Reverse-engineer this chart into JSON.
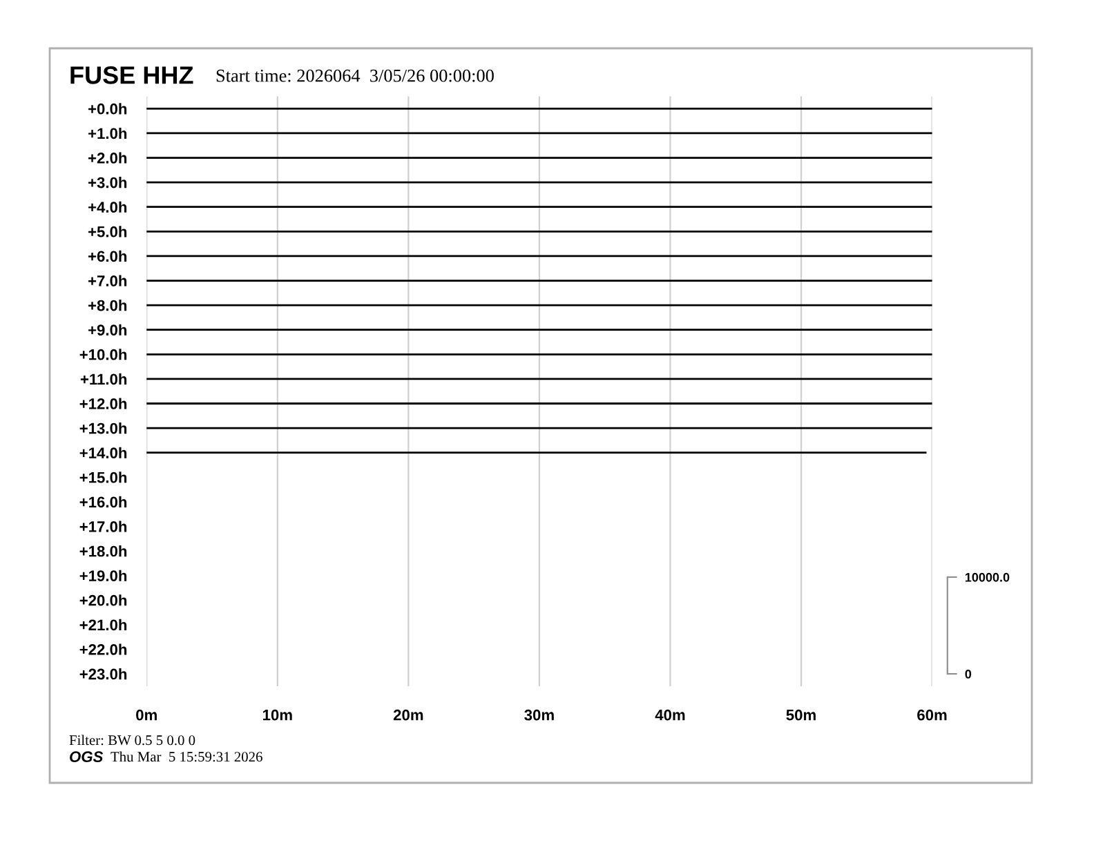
{
  "chart_data": {
    "type": "line",
    "title": "FUSE HHZ",
    "subtitle": "Start time: 2026064  3/05/26 00:00:00",
    "annotations": [
      "Filter: BW 0.5 5 0.0 0",
      "OGS",
      "Thu Mar  5 15:59:31 2026"
    ],
    "xlim": [
      0,
      60
    ],
    "xticks": [
      {
        "value": 0,
        "label": "0m"
      },
      {
        "value": 10,
        "label": "10m"
      },
      {
        "value": 20,
        "label": "20m"
      },
      {
        "value": 30,
        "label": "30m"
      },
      {
        "value": 40,
        "label": "40m"
      },
      {
        "value": 50,
        "label": "50m"
      },
      {
        "value": 60,
        "label": "60m"
      }
    ],
    "ylim": [
      23.5,
      -0.5
    ],
    "yticks": [
      {
        "value": 0,
        "label": "+0.0h"
      },
      {
        "value": 1,
        "label": "+1.0h"
      },
      {
        "value": 2,
        "label": "+2.0h"
      },
      {
        "value": 3,
        "label": "+3.0h"
      },
      {
        "value": 4,
        "label": "+4.0h"
      },
      {
        "value": 5,
        "label": "+5.0h"
      },
      {
        "value": 6,
        "label": "+6.0h"
      },
      {
        "value": 7,
        "label": "+7.0h"
      },
      {
        "value": 8,
        "label": "+8.0h"
      },
      {
        "value": 9,
        "label": "+9.0h"
      },
      {
        "value": 10,
        "label": "+10.0h"
      },
      {
        "value": 11,
        "label": "+11.0h"
      },
      {
        "value": 12,
        "label": "+12.0h"
      },
      {
        "value": 13,
        "label": "+13.0h"
      },
      {
        "value": 14,
        "label": "+14.0h"
      },
      {
        "value": 15,
        "label": "+15.0h"
      },
      {
        "value": 16,
        "label": "+16.0h"
      },
      {
        "value": 17,
        "label": "+17.0h"
      },
      {
        "value": 18,
        "label": "+18.0h"
      },
      {
        "value": 19,
        "label": "+19.0h"
      },
      {
        "value": 20,
        "label": "+20.0h"
      },
      {
        "value": 21,
        "label": "+21.0h"
      },
      {
        "value": 22,
        "label": "+22.0h"
      },
      {
        "value": 23,
        "label": "+23.0h"
      }
    ],
    "y2lim": [
      -1270,
      59690
    ],
    "y2ticks": [
      0,
      {
        "value": 10000,
        "label": "10000.0"
      }
    ],
    "grid": "x",
    "legend": false,
    "series": [
      {
        "color": "#000000",
        "x": [
          0,
          60
        ],
        "values": [
          0,
          0
        ]
      },
      {
        "color": "#000000",
        "x": [
          0,
          60
        ],
        "values": [
          1,
          1
        ]
      },
      {
        "color": "#000000",
        "x": [
          0,
          60
        ],
        "values": [
          2,
          2
        ]
      },
      {
        "color": "#000000",
        "x": [
          0,
          60
        ],
        "values": [
          3,
          3
        ]
      },
      {
        "color": "#000000",
        "x": [
          0,
          60
        ],
        "values": [
          4,
          4
        ]
      },
      {
        "color": "#000000",
        "x": [
          0,
          60
        ],
        "values": [
          5,
          5
        ]
      },
      {
        "color": "#000000",
        "x": [
          0,
          60
        ],
        "values": [
          6,
          6
        ]
      },
      {
        "color": "#000000",
        "x": [
          0,
          60
        ],
        "values": [
          7,
          7
        ]
      },
      {
        "color": "#000000",
        "x": [
          0,
          60
        ],
        "values": [
          8,
          8
        ]
      },
      {
        "color": "#000000",
        "x": [
          0,
          60
        ],
        "values": [
          9,
          9
        ]
      },
      {
        "color": "#000000",
        "x": [
          0,
          60
        ],
        "values": [
          10,
          10
        ]
      },
      {
        "color": "#000000",
        "x": [
          0,
          60
        ],
        "values": [
          11,
          11
        ]
      },
      {
        "color": "#000000",
        "x": [
          0,
          60
        ],
        "values": [
          12,
          12
        ]
      },
      {
        "color": "#000000",
        "x": [
          0,
          60
        ],
        "values": [
          13,
          13
        ]
      },
      {
        "color": "#000000",
        "x": [
          0,
          59.5
        ],
        "values": [
          14,
          14
        ]
      }
    ]
  }
}
